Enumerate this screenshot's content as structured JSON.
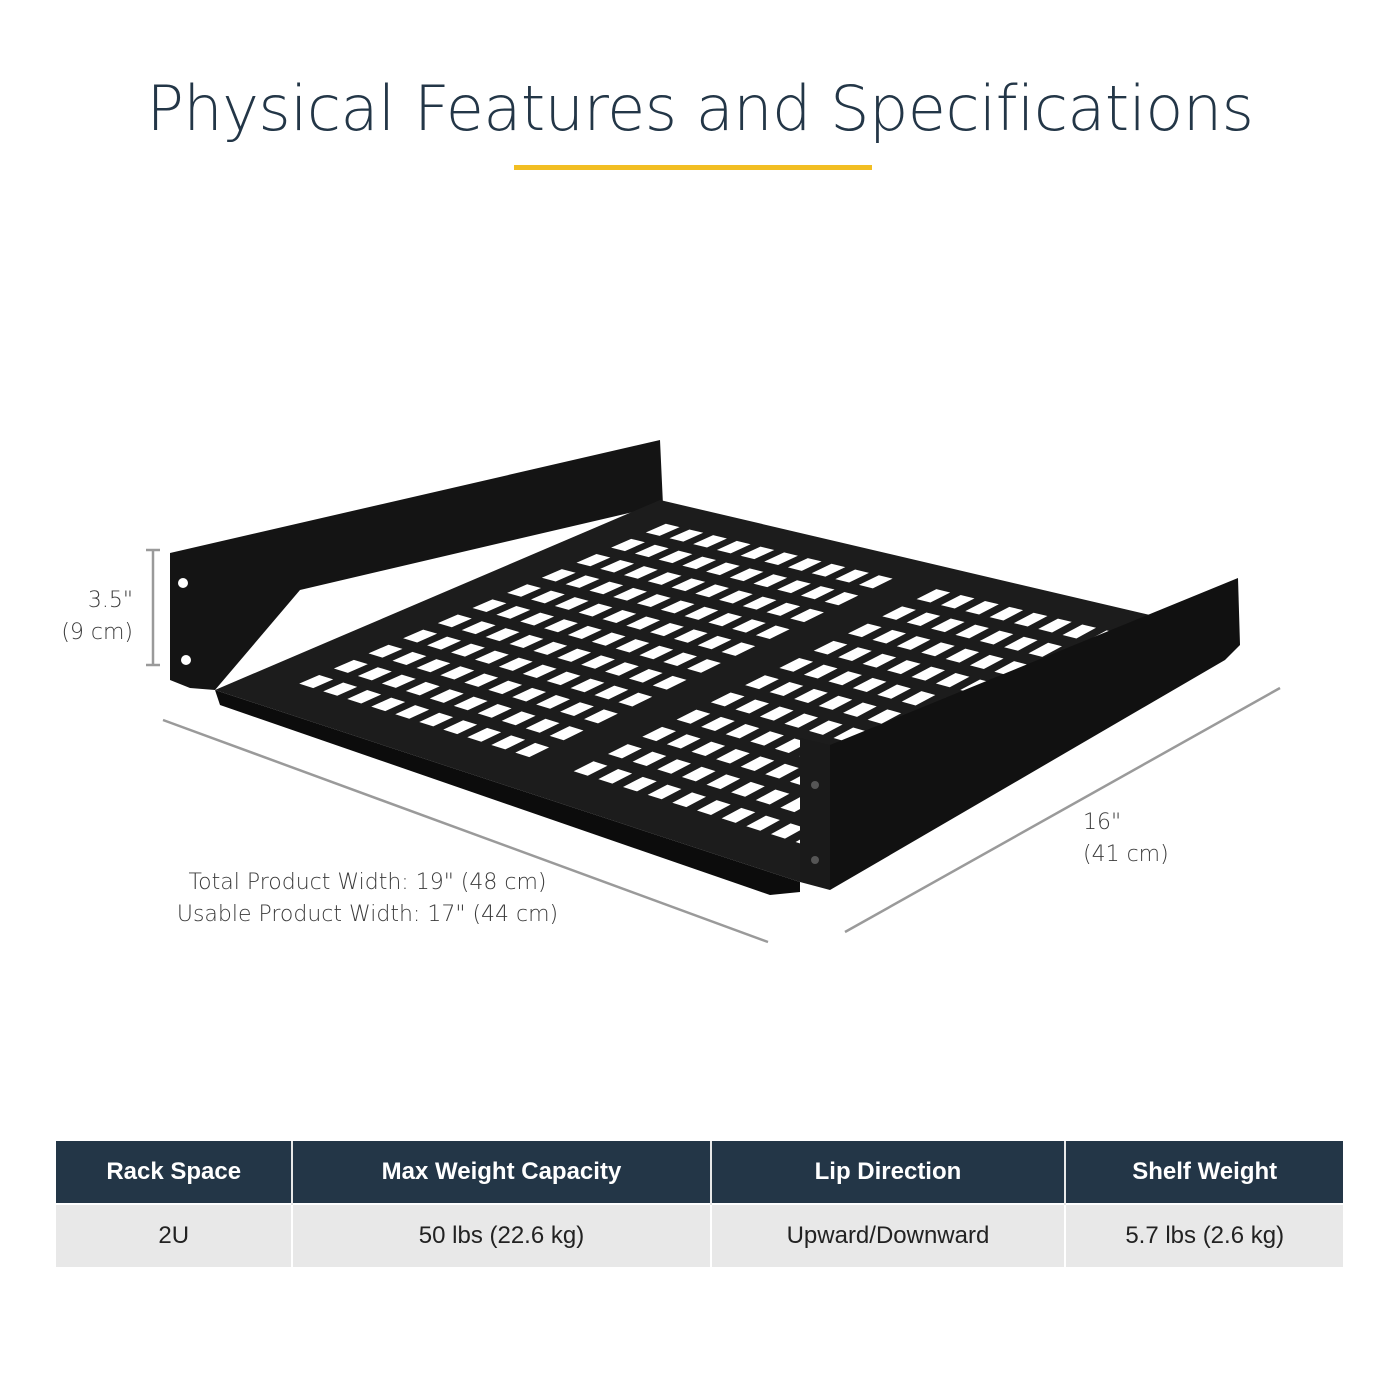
{
  "title": "Physical Features and Specifications",
  "accent_color": "#f2be22",
  "header_color": "#233647",
  "dimensions": {
    "height": [
      "3.5\"",
      "(9 cm)"
    ],
    "depth": [
      "16\"",
      "(41 cm)"
    ],
    "width": [
      "Total Product Width: 19\" (48 cm)",
      "Usable Product Width: 17\" (44 cm)"
    ]
  },
  "product_image": "black vented 2U rack shelf",
  "specs": {
    "headers": [
      "Rack Space",
      "Max Weight Capacity",
      "Lip Direction",
      "Shelf Weight"
    ],
    "values": [
      "2U",
      "50 lbs (22.6 kg)",
      "Upward/Downward",
      "5.7 lbs (2.6 kg)"
    ]
  }
}
